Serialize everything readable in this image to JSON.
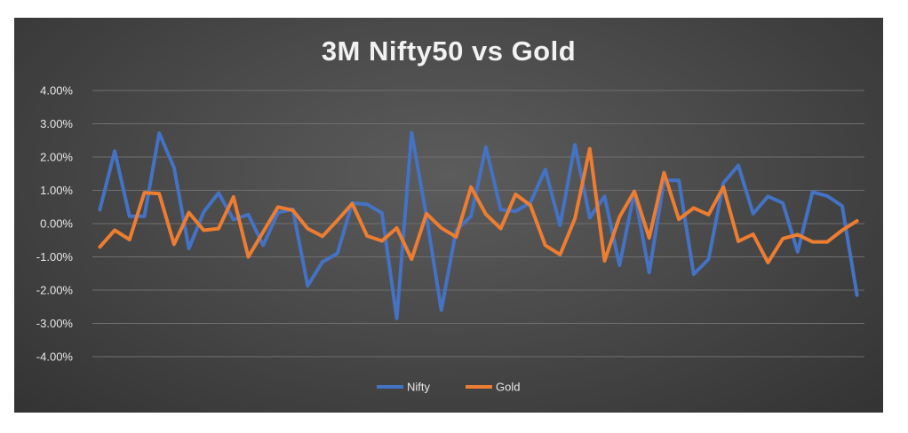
{
  "chart_data": {
    "type": "line",
    "title": "3M Nifty50 vs Gold",
    "xlabel": "",
    "ylabel": "",
    "ylim": [
      -0.04,
      0.04
    ],
    "yticks": [
      "4.00%",
      "3.00%",
      "2.00%",
      "1.00%",
      "0.00%",
      "-1.00%",
      "-2.00%",
      "-3.00%",
      "-4.00%"
    ],
    "ytick_values": [
      0.04,
      0.03,
      0.02,
      0.01,
      0.0,
      -0.01,
      -0.02,
      -0.03,
      -0.04
    ],
    "grid": true,
    "legend_position": "bottom-center",
    "series": [
      {
        "name": "Nifty",
        "color": "#4472c4",
        "values": [
          0.0042,
          0.0218,
          0.0022,
          0.0022,
          0.0272,
          0.0168,
          -0.0075,
          0.0035,
          0.0092,
          0.0012,
          0.0027,
          -0.0065,
          0.0033,
          0.0043,
          -0.0187,
          -0.0115,
          -0.009,
          0.0062,
          0.0058,
          0.0032,
          -0.0285,
          0.0273,
          0.0022,
          -0.026,
          -0.002,
          0.0022,
          0.023,
          0.0042,
          0.0037,
          0.0063,
          0.0163,
          -0.0005,
          0.0237,
          0.0018,
          0.0082,
          -0.0125,
          0.0095,
          -0.0147,
          0.013,
          0.013,
          -0.0152,
          -0.0107,
          0.0122,
          0.0175,
          0.003,
          0.0082,
          0.0062,
          -0.0085,
          0.0095,
          0.0083,
          0.0053,
          -0.0215
        ]
      },
      {
        "name": "Gold",
        "color": "#ed7d31",
        "values": [
          -0.007,
          -0.002,
          -0.0048,
          0.0093,
          0.009,
          -0.0062,
          0.0033,
          -0.002,
          -0.0015,
          0.008,
          -0.01,
          -0.0025,
          0.005,
          0.004,
          -0.0015,
          -0.0038,
          0.001,
          0.006,
          -0.0037,
          -0.0052,
          -0.0013,
          -0.0107,
          0.003,
          -0.0013,
          -0.004,
          0.011,
          0.0028,
          -0.0015,
          0.0088,
          0.0055,
          -0.0065,
          -0.0093,
          0.0015,
          0.0225,
          -0.0112,
          0.002,
          0.0097,
          -0.0043,
          0.0153,
          0.0013,
          0.0047,
          0.0027,
          0.011,
          -0.0053,
          -0.0032,
          -0.0117,
          -0.0045,
          -0.0033,
          -0.0055,
          -0.0055,
          -0.002,
          0.0008
        ]
      }
    ]
  }
}
